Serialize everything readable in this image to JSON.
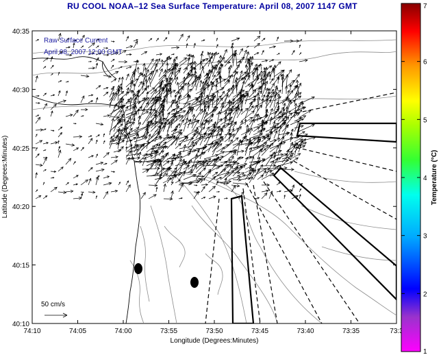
{
  "title": "RU COOL  NOAA–12  Sea Surface Temperature:  April 08, 2007 1147 GMT",
  "legend": {
    "line1": "Raw Surface Current",
    "line2": "April 08, 2007 12:00 GMT",
    "scale_label": "50 cm/s"
  },
  "x_axis": {
    "label": "Longitude (Degrees:Minutes)",
    "ticks": [
      "74:10",
      "74:05",
      "74:00",
      "73:55",
      "73:50",
      "73:45",
      "73:40",
      "73:35",
      "73:3"
    ]
  },
  "y_axis": {
    "label": "Latitude (Degrees:Minutes)",
    "ticks": [
      "40:35",
      "40:30",
      "40:25",
      "40:20",
      "40:15",
      "40:10"
    ]
  },
  "colorbar": {
    "label": "Temperature (°C)",
    "ticks": [
      "7",
      "6",
      "5",
      "4",
      "3",
      "2",
      "1"
    ]
  },
  "colors": {
    "title": "#0000a0",
    "legend_text": "#1a1aa0",
    "coast": "#000000",
    "contour": "#888888"
  }
}
